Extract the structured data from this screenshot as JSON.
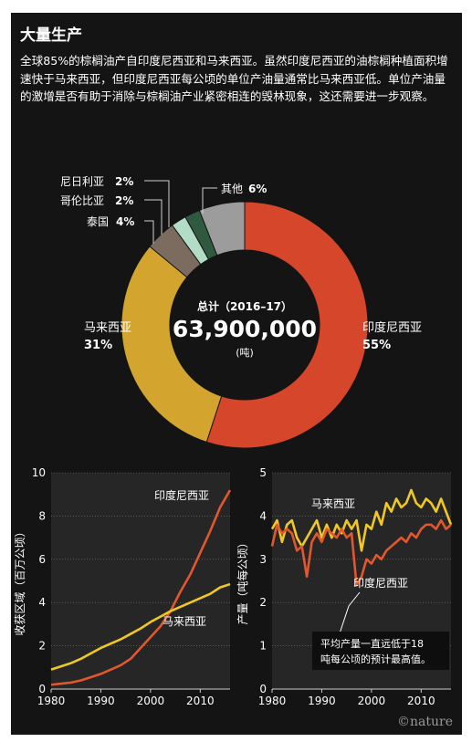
{
  "header": {
    "title": "大量生产",
    "lead": "全球85%的棕榈油产自印度尼西亚和马来西亚。虽然印度尼西亚的油棕榈种植面积增速快于马来西亚，但印度尼西亚每公顷的单位产油量通常比马来西亚低。单位产油量的激增是否有助于消除与棕榈油产业紧密相连的毁林现象，这还需要进一步观察。"
  },
  "brand": "©nature",
  "chart_data": [
    {
      "type": "pie",
      "center_label": {
        "line1": "总计（2016–17）",
        "total": "63,900,000",
        "unit": "(吨)"
      },
      "slices": [
        {
          "name": "印度尼西亚",
          "percent": 55,
          "label": "55%",
          "color": "#d5462b"
        },
        {
          "name": "马来西亚",
          "percent": 31,
          "label": "31%",
          "color": "#d4a52e"
        },
        {
          "name": "泰国",
          "percent": 4,
          "label": "4%",
          "color": "#7b6c5f"
        },
        {
          "name": "哥伦比亚",
          "percent": 2,
          "label": "2%",
          "color": "#b2dcc5"
        },
        {
          "name": "尼日利亚",
          "percent": 2,
          "label": "2%",
          "color": "#2f5a40"
        },
        {
          "name": "其他",
          "percent": 6,
          "label": "6%",
          "color": "#9c9c9c"
        }
      ]
    },
    {
      "type": "line",
      "ylabel": "收获区域（百万公顷）",
      "xlim": [
        1980,
        2016
      ],
      "ylim": [
        0,
        10
      ],
      "xticks": [
        1980,
        1990,
        2000,
        2010
      ],
      "yticks": [
        0,
        2,
        4,
        6,
        8,
        10
      ],
      "series": [
        {
          "name": "印度尼西亚",
          "color": "#e2572d",
          "x": [
            1980,
            1982,
            1984,
            1986,
            1988,
            1990,
            1992,
            1994,
            1996,
            1998,
            2000,
            2002,
            2004,
            2006,
            2008,
            2010,
            2012,
            2014,
            2016
          ],
          "values": [
            0.2,
            0.25,
            0.3,
            0.4,
            0.55,
            0.7,
            0.9,
            1.1,
            1.4,
            1.9,
            2.4,
            2.9,
            3.6,
            4.5,
            5.3,
            6.3,
            7.3,
            8.4,
            9.2
          ]
        },
        {
          "name": "马来西亚",
          "color": "#f0c825",
          "x": [
            1980,
            1982,
            1984,
            1986,
            1988,
            1990,
            1992,
            1994,
            1996,
            1998,
            2000,
            2002,
            2004,
            2006,
            2008,
            2010,
            2012,
            2014,
            2016
          ],
          "values": [
            0.9,
            1.05,
            1.2,
            1.4,
            1.65,
            1.9,
            2.1,
            2.3,
            2.55,
            2.8,
            3.1,
            3.35,
            3.6,
            3.8,
            4.0,
            4.2,
            4.4,
            4.7,
            4.85
          ]
        }
      ]
    },
    {
      "type": "line",
      "ylabel": "产量（吨每公顷）",
      "annotation": "平均产量一直远低于18吨每公顷的预计最高值。",
      "xlim": [
        1980,
        2016
      ],
      "ylim": [
        0,
        5
      ],
      "xticks": [
        1980,
        1990,
        2000,
        2010
      ],
      "yticks": [
        0,
        1,
        2,
        3,
        4,
        5
      ],
      "series": [
        {
          "name": "马来西亚",
          "color": "#f0c825",
          "x": [
            1980,
            1981,
            1982,
            1983,
            1984,
            1985,
            1986,
            1987,
            1988,
            1989,
            1990,
            1991,
            1992,
            1993,
            1994,
            1995,
            1996,
            1997,
            1998,
            1999,
            2000,
            2001,
            2002,
            2003,
            2004,
            2005,
            2006,
            2007,
            2008,
            2009,
            2010,
            2011,
            2012,
            2013,
            2014,
            2015,
            2016
          ],
          "values": [
            3.7,
            3.9,
            3.4,
            3.8,
            3.9,
            3.5,
            3.3,
            3.5,
            3.7,
            3.9,
            3.5,
            3.8,
            3.5,
            3.8,
            3.6,
            3.9,
            3.7,
            3.9,
            3.2,
            3.8,
            3.7,
            4.1,
            3.8,
            4.3,
            4.1,
            4.4,
            4.2,
            4.3,
            4.6,
            4.3,
            4.2,
            4.4,
            4.3,
            4.1,
            4.4,
            4.1,
            3.8
          ]
        },
        {
          "name": "印度尼西亚",
          "color": "#e2572d",
          "x": [
            1980,
            1981,
            1982,
            1983,
            1984,
            1985,
            1986,
            1987,
            1988,
            1989,
            1990,
            1991,
            1992,
            1993,
            1994,
            1995,
            1996,
            1997,
            1998,
            1999,
            2000,
            2001,
            2002,
            2003,
            2004,
            2005,
            2006,
            2007,
            2008,
            2009,
            2010,
            2011,
            2012,
            2013,
            2014,
            2015,
            2016
          ],
          "values": [
            3.3,
            3.8,
            3.6,
            3.7,
            3.6,
            3.2,
            3.3,
            2.6,
            3.4,
            3.6,
            3.4,
            3.7,
            3.6,
            3.5,
            3.7,
            3.5,
            3.6,
            2.4,
            2.6,
            3.0,
            2.9,
            3.1,
            3.0,
            3.2,
            3.3,
            3.4,
            3.5,
            3.4,
            3.6,
            3.5,
            3.7,
            3.8,
            3.8,
            3.7,
            3.9,
            3.7,
            3.8
          ]
        }
      ]
    }
  ]
}
